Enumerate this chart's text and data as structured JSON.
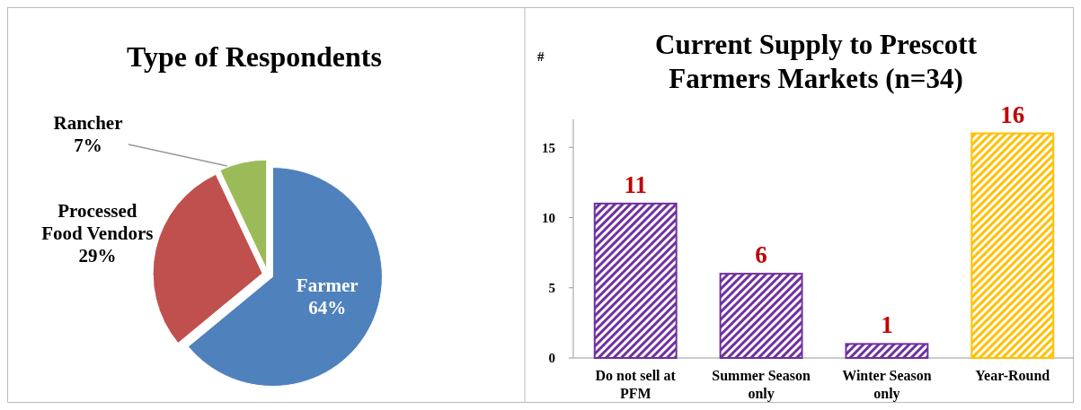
{
  "chart_data": [
    {
      "type": "pie",
      "title": "Type of Respondents",
      "categories": [
        "Farmer",
        "Processed Food Vendors",
        "Rancher"
      ],
      "values": [
        64,
        29,
        7
      ],
      "colors": [
        "#4f81bd",
        "#c0504d",
        "#9bbb59"
      ],
      "value_labels": [
        "64%",
        "29%",
        "7%"
      ]
    },
    {
      "type": "bar",
      "title": "Current Supply to Prescott Farmers Markets (n=34)",
      "ylabel": "#",
      "categories": [
        "Do not sell at PFM",
        "Summer Season only",
        "Winter Season only",
        "Year-Round"
      ],
      "values": [
        11,
        6,
        1,
        16
      ],
      "colors": [
        "#7030a0",
        "#7030a0",
        "#7030a0",
        "#ffc000"
      ],
      "ylim": [
        0,
        17
      ],
      "yticks": [
        0,
        5,
        10,
        15
      ],
      "data_labels": true,
      "grid": false
    }
  ]
}
